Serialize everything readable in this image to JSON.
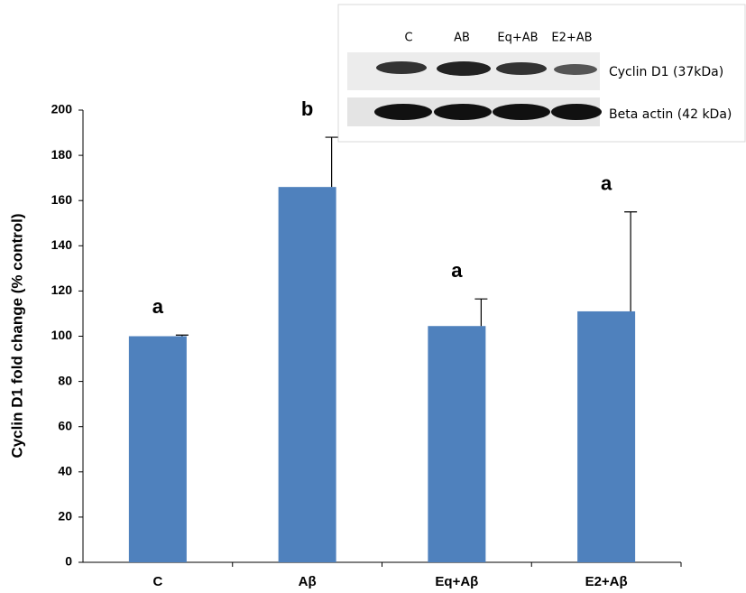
{
  "chart_data": {
    "type": "bar",
    "ylabel": "Cyclin D1 fold change (% control)",
    "categories": [
      "C",
      "Aβ",
      "Eq+Aβ",
      "E2+Aβ"
    ],
    "values": [
      100,
      166,
      104.5,
      111
    ],
    "errors": [
      0.5,
      22,
      12,
      44
    ],
    "significance": [
      "a",
      "b",
      "a",
      "a"
    ],
    "color": "#4f81bd",
    "ylim": [
      0,
      200
    ],
    "yticks": [
      0,
      20,
      40,
      60,
      80,
      100,
      120,
      140,
      160,
      180,
      200
    ],
    "inset": {
      "lanes": [
        "C",
        "AB",
        "Eq+AB",
        "E2+AB"
      ],
      "rows": [
        "Cyclin D1 (37kDa)",
        "Beta actin (42 kDa)"
      ]
    }
  }
}
